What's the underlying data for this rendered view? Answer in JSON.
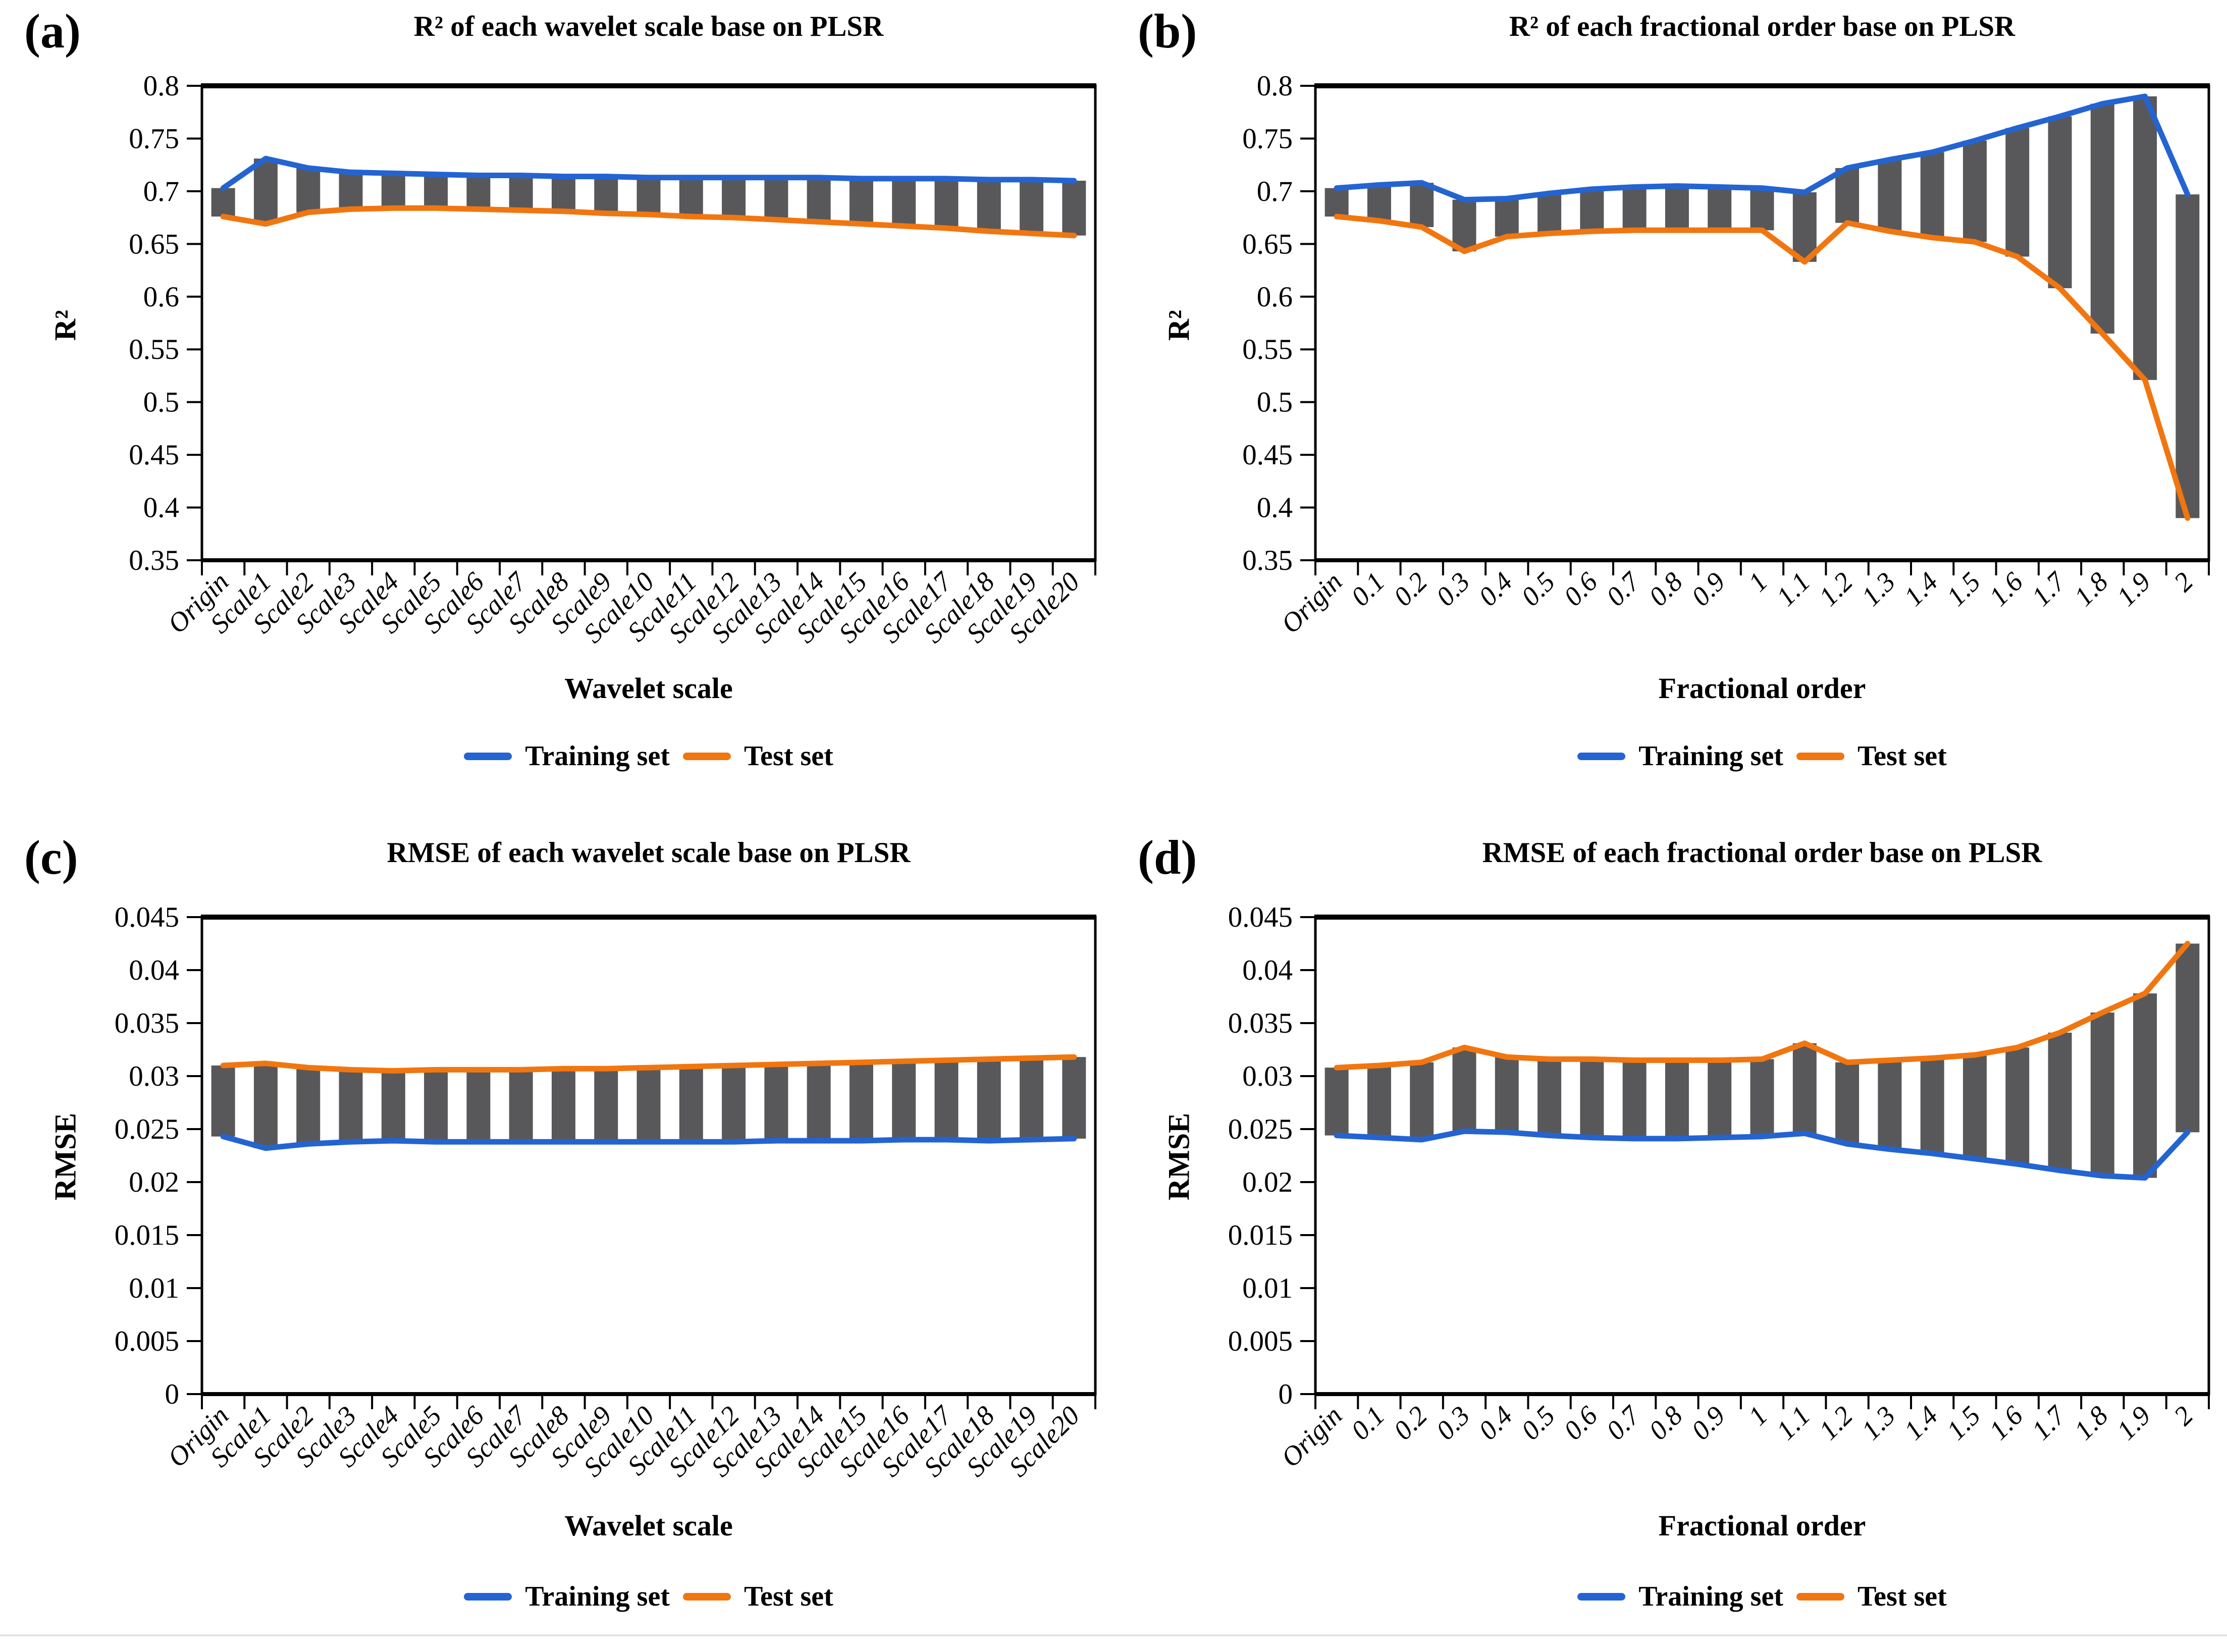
{
  "figure": {
    "legend": {
      "training": "Training set",
      "test": "Test set"
    },
    "colors": {
      "training": "#2364D2",
      "test": "#F1760F",
      "bar": "#58585A",
      "axis": "#000000"
    }
  },
  "chart_data": [
    {
      "id": "a",
      "panel_label": "(a)",
      "type": "line",
      "title": "R² of each wavelet scale base on PLSR",
      "xlabel": "Wavelet scale",
      "ylabel": "R²",
      "ylim": [
        0.35,
        0.8
      ],
      "yticks": [
        "0.35",
        "0.4",
        "0.45",
        "0.5",
        "0.55",
        "0.6",
        "0.65",
        "0.7",
        "0.75",
        "0.8"
      ],
      "grid": false,
      "legend_position": "bottom",
      "bars_between_series": true,
      "categories": [
        "Origin",
        "Scale1",
        "Scale2",
        "Scale3",
        "Scale4",
        "Scale5",
        "Scale6",
        "Scale7",
        "Scale8",
        "Scale9",
        "Scale10",
        "Scale11",
        "Scale12",
        "Scale13",
        "Scale14",
        "Scale15",
        "Scale16",
        "Scale17",
        "Scale18",
        "Scale19",
        "Scale20"
      ],
      "series": [
        {
          "name": "Training set",
          "values": [
            0.703,
            0.731,
            0.722,
            0.718,
            0.717,
            0.716,
            0.715,
            0.715,
            0.714,
            0.714,
            0.713,
            0.713,
            0.713,
            0.713,
            0.713,
            0.712,
            0.712,
            0.712,
            0.711,
            0.711,
            0.71
          ]
        },
        {
          "name": "Test set",
          "values": [
            0.676,
            0.669,
            0.68,
            0.683,
            0.684,
            0.684,
            0.683,
            0.682,
            0.681,
            0.679,
            0.678,
            0.676,
            0.675,
            0.673,
            0.671,
            0.669,
            0.667,
            0.665,
            0.662,
            0.66,
            0.658
          ]
        }
      ]
    },
    {
      "id": "b",
      "panel_label": "(b)",
      "type": "line",
      "title": "R² of each fractional order base on PLSR",
      "xlabel": "Fractional order",
      "ylabel": "R²",
      "ylim": [
        0.35,
        0.8
      ],
      "yticks": [
        "0.35",
        "0.4",
        "0.45",
        "0.5",
        "0.55",
        "0.6",
        "0.65",
        "0.7",
        "0.75",
        "0.8"
      ],
      "grid": false,
      "legend_position": "bottom",
      "bars_between_series": true,
      "categories": [
        "Origin",
        "0.1",
        "0.2",
        "0.3",
        "0.4",
        "0.5",
        "0.6",
        "0.7",
        "0.8",
        "0.9",
        "1",
        "1.1",
        "1.2",
        "1.3",
        "1.4",
        "1.5",
        "1.6",
        "1.7",
        "1.8",
        "1.9",
        "2"
      ],
      "series": [
        {
          "name": "Training set",
          "values": [
            0.703,
            0.706,
            0.708,
            0.692,
            0.693,
            0.698,
            0.702,
            0.704,
            0.705,
            0.704,
            0.703,
            0.699,
            0.722,
            0.73,
            0.737,
            0.748,
            0.76,
            0.771,
            0.783,
            0.79,
            0.697
          ]
        },
        {
          "name": "Test set",
          "values": [
            0.676,
            0.672,
            0.666,
            0.643,
            0.657,
            0.66,
            0.662,
            0.663,
            0.663,
            0.663,
            0.663,
            0.633,
            0.67,
            0.662,
            0.656,
            0.652,
            0.638,
            0.608,
            0.565,
            0.521,
            0.39
          ]
        }
      ]
    },
    {
      "id": "c",
      "panel_label": "(c)",
      "type": "line",
      "title": "RMSE of each wavelet scale base on PLSR",
      "xlabel": "Wavelet scale",
      "ylabel": "RMSE",
      "ylim": [
        0,
        0.045
      ],
      "yticks": [
        "0",
        "0.005",
        "0.01",
        "0.015",
        "0.02",
        "0.025",
        "0.03",
        "0.035",
        "0.04",
        "0.045"
      ],
      "grid": false,
      "legend_position": "bottom",
      "bars_between_series": true,
      "categories": [
        "Origin",
        "Scale1",
        "Scale2",
        "Scale3",
        "Scale4",
        "Scale5",
        "Scale6",
        "Scale7",
        "Scale8",
        "Scale9",
        "Scale10",
        "Scale11",
        "Scale12",
        "Scale13",
        "Scale14",
        "Scale15",
        "Scale16",
        "Scale17",
        "Scale18",
        "Scale19",
        "Scale20"
      ],
      "series": [
        {
          "name": "Training set",
          "values": [
            0.0243,
            0.0232,
            0.0236,
            0.0238,
            0.0239,
            0.0238,
            0.0238,
            0.0238,
            0.0238,
            0.0238,
            0.0238,
            0.0238,
            0.0238,
            0.0239,
            0.0239,
            0.0239,
            0.024,
            0.024,
            0.0239,
            0.024,
            0.0241
          ]
        },
        {
          "name": "Test set",
          "values": [
            0.031,
            0.0312,
            0.0308,
            0.0306,
            0.0305,
            0.0306,
            0.0306,
            0.0306,
            0.0307,
            0.0307,
            0.0308,
            0.0309,
            0.031,
            0.0311,
            0.0312,
            0.0313,
            0.0314,
            0.0315,
            0.0316,
            0.0317,
            0.0318
          ]
        }
      ]
    },
    {
      "id": "d",
      "panel_label": "(d)",
      "type": "line",
      "title": "RMSE of each fractional order base on PLSR",
      "xlabel": "Fractional order",
      "ylabel": "RMSE",
      "ylim": [
        0,
        0.045
      ],
      "yticks": [
        "0",
        "0.005",
        "0.01",
        "0.015",
        "0.02",
        "0.025",
        "0.03",
        "0.035",
        "0.04",
        "0.045"
      ],
      "grid": false,
      "legend_position": "bottom",
      "bars_between_series": true,
      "categories": [
        "Origin",
        "0.1",
        "0.2",
        "0.3",
        "0.4",
        "0.5",
        "0.6",
        "0.7",
        "0.8",
        "0.9",
        "1",
        "1.1",
        "1.2",
        "1.3",
        "1.4",
        "1.5",
        "1.6",
        "1.7",
        "1.8",
        "1.9",
        "2"
      ],
      "series": [
        {
          "name": "Training set",
          "values": [
            0.0244,
            0.0242,
            0.024,
            0.0248,
            0.0247,
            0.0244,
            0.0242,
            0.0241,
            0.0241,
            0.0242,
            0.0243,
            0.0246,
            0.0236,
            0.0231,
            0.0227,
            0.0222,
            0.0217,
            0.0211,
            0.0206,
            0.0204,
            0.0247
          ]
        },
        {
          "name": "Test set",
          "values": [
            0.0308,
            0.031,
            0.0313,
            0.0327,
            0.0318,
            0.0316,
            0.0316,
            0.0315,
            0.0315,
            0.0315,
            0.0316,
            0.0331,
            0.0313,
            0.0315,
            0.0317,
            0.032,
            0.0327,
            0.0341,
            0.036,
            0.0378,
            0.0425
          ]
        }
      ]
    }
  ]
}
